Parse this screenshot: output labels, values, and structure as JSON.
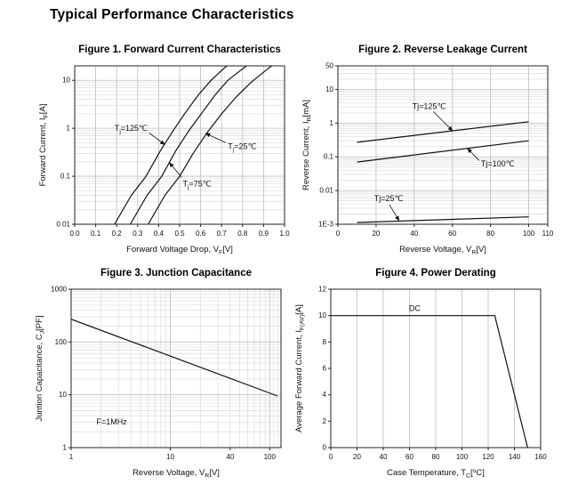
{
  "page": {
    "title": "Typical Performance Characteristics",
    "background": "#ffffff",
    "text_color": "#111111",
    "frame_color": "#222222",
    "curve_color": "#111111",
    "grid_color": "#bdbdbd",
    "minor_grid_color": "#dcdcdc"
  },
  "chart_data": [
    {
      "type": "line",
      "title": "Figure 1. Forward Current Characteristics",
      "x": {
        "scale": "linear",
        "min": 0,
        "max": 1.0,
        "ticks": [
          0,
          0.1,
          0.2,
          0.3,
          0.4,
          0.5,
          0.6,
          0.7,
          0.8,
          0.9,
          1.0
        ],
        "tick_labels": [
          "0.0",
          "0.1",
          "0.2",
          "0.3",
          "0.4",
          "0.5",
          "0.6",
          "0.7",
          "0.8",
          "0.9",
          "1.0"
        ],
        "grid_ticks": [
          0.1,
          0.2,
          0.3,
          0.4,
          0.5,
          0.6,
          0.7,
          0.8,
          0.9
        ],
        "minor_grid": [],
        "label_parts": [
          {
            "t": "Forward Voltage Drop, V"
          },
          {
            "t": "F",
            "sub": true
          },
          {
            "t": "[V]"
          }
        ]
      },
      "y": {
        "scale": "log",
        "min": 0.01,
        "max": 20,
        "ticks": [
          0.01,
          0.1,
          1,
          10
        ],
        "tick_labels": [
          "0.01",
          "0.1",
          "1",
          "10"
        ],
        "grid_ticks": [
          0.1,
          1,
          10
        ],
        "minor_grid": [
          0.02,
          0.03,
          0.04,
          0.05,
          0.06,
          0.07,
          0.08,
          0.09,
          0.2,
          0.3,
          0.4,
          0.5,
          0.6,
          0.7,
          0.8,
          0.9,
          2,
          3,
          4,
          5,
          6,
          7,
          8,
          9
        ],
        "label_parts": [
          {
            "t": "Forward Current, I"
          },
          {
            "t": "F",
            "sub": true
          },
          {
            "t": "[A]"
          }
        ]
      },
      "series": [
        {
          "key": "tj-125c",
          "name": "Tj=125℃",
          "points": [
            [
              0.19,
              0.01
            ],
            [
              0.27,
              0.04
            ],
            [
              0.34,
              0.1
            ],
            [
              0.41,
              0.35
            ],
            [
              0.47,
              0.9
            ],
            [
              0.53,
              2.2
            ],
            [
              0.59,
              5
            ],
            [
              0.65,
              10
            ],
            [
              0.7,
              16
            ],
            [
              0.73,
              21
            ]
          ]
        },
        {
          "key": "tj-75c",
          "name": "Tj=75℃",
          "points": [
            [
              0.265,
              0.01
            ],
            [
              0.345,
              0.04
            ],
            [
              0.415,
              0.1
            ],
            [
              0.48,
              0.33
            ],
            [
              0.545,
              0.9
            ],
            [
              0.61,
              2.2
            ],
            [
              0.67,
              5
            ],
            [
              0.73,
              10
            ],
            [
              0.79,
              16
            ],
            [
              0.825,
              21
            ]
          ]
        },
        {
          "key": "tj-25c",
          "name": "Tj=25℃",
          "points": [
            [
              0.35,
              0.01
            ],
            [
              0.43,
              0.04
            ],
            [
              0.5,
              0.1
            ],
            [
              0.565,
              0.3
            ],
            [
              0.63,
              0.8
            ],
            [
              0.7,
              2.0
            ],
            [
              0.77,
              4.5
            ],
            [
              0.84,
              9
            ],
            [
              0.91,
              16
            ],
            [
              0.945,
              21
            ]
          ]
        }
      ],
      "annotations": [
        {
          "parts": [
            {
              "t": "T"
            },
            {
              "t": "j",
              "sub": true
            },
            {
              "t": "=125℃"
            }
          ],
          "x": 0.19,
          "y": 1.0,
          "anchor": "start",
          "arrow": [
            [
              0.355,
              0.8
            ],
            [
              0.428,
              0.46
            ]
          ]
        },
        {
          "parts": [
            {
              "t": "T"
            },
            {
              "t": "j",
              "sub": true
            },
            {
              "t": "=25℃"
            }
          ],
          "x": 0.73,
          "y": 0.42,
          "anchor": "start",
          "arrow": [
            [
              0.72,
              0.5
            ],
            [
              0.625,
              0.78
            ]
          ]
        },
        {
          "parts": [
            {
              "t": "T"
            },
            {
              "t": "j",
              "sub": true
            },
            {
              "t": "=75℃"
            }
          ],
          "x": 0.515,
          "y": 0.07,
          "anchor": "start",
          "arrow": [
            [
              0.51,
              0.095
            ],
            [
              0.452,
              0.19
            ]
          ]
        }
      ]
    },
    {
      "type": "line",
      "title": "Figure 2. Reverse Leakage Current",
      "x": {
        "scale": "linear",
        "min": 0,
        "max": 110,
        "ticks": [
          0,
          20,
          40,
          60,
          80,
          100,
          110
        ],
        "tick_labels": [
          "0",
          "20",
          "40",
          "60",
          "80",
          "100",
          "110"
        ],
        "grid_ticks": [
          20,
          40,
          60,
          80,
          100
        ],
        "minor_grid": [],
        "label_parts": [
          {
            "t": "Reverse Voltage, V"
          },
          {
            "t": "R",
            "sub": true
          },
          {
            "t": "[V]"
          }
        ]
      },
      "y": {
        "scale": "log",
        "min": 0.001,
        "max": 50,
        "ticks": [
          0.001,
          0.01,
          0.1,
          1,
          10,
          50
        ],
        "tick_labels": [
          "1E-3",
          "0.01",
          "0.1",
          "1",
          "10",
          "50"
        ],
        "grid_ticks": [
          0.01,
          0.1,
          1,
          10
        ],
        "minor_grid": [
          0.002,
          0.003,
          0.004,
          0.005,
          0.006,
          0.007,
          0.008,
          0.009,
          0.02,
          0.03,
          0.04,
          0.05,
          0.06,
          0.07,
          0.08,
          0.09,
          0.2,
          0.3,
          0.4,
          0.5,
          0.6,
          0.7,
          0.8,
          0.9,
          2,
          3,
          4,
          5,
          6,
          7,
          8,
          9,
          20,
          30,
          40
        ],
        "label_parts": [
          {
            "t": "Reverse Current, I"
          },
          {
            "t": "R",
            "sub": true
          },
          {
            "t": "[mA]"
          }
        ]
      },
      "series": [
        {
          "key": "tj-125c",
          "name": "Tj=125℃",
          "points": [
            [
              10,
              0.27
            ],
            [
              100,
              1.1
            ]
          ]
        },
        {
          "key": "tj-100c",
          "name": "Tj=100℃",
          "points": [
            [
              10,
              0.07
            ],
            [
              100,
              0.3
            ]
          ]
        },
        {
          "key": "tj-25c",
          "name": "Tj=25℃",
          "points": [
            [
              10,
              0.00113
            ],
            [
              100,
              0.00166
            ]
          ]
        }
      ],
      "annotations": [
        {
          "parts": [
            {
              "t": "Tj=125℃"
            }
          ],
          "x": 39,
          "y": 3.1,
          "anchor": "start",
          "arrow": [
            [
              50,
              2.2
            ],
            [
              60,
              0.6
            ]
          ]
        },
        {
          "parts": [
            {
              "t": "Tj=100℃"
            }
          ],
          "x": 75,
          "y": 0.062,
          "anchor": "start",
          "arrow": [
            [
              74,
              0.078
            ],
            [
              68,
              0.175
            ]
          ]
        },
        {
          "parts": [
            {
              "t": "Tj=25℃"
            }
          ],
          "x": 19,
          "y": 0.0058,
          "anchor": "start",
          "arrow": [
            [
              27,
              0.0038
            ],
            [
              32,
              0.0013
            ]
          ]
        }
      ]
    },
    {
      "type": "line",
      "title": "Figure 3. Junction Capacitance",
      "x": {
        "scale": "log",
        "min": 1,
        "max": 130,
        "ticks": [
          1,
          10,
          40,
          100
        ],
        "tick_labels": [
          "1",
          "10",
          "40",
          "100"
        ],
        "grid_ticks": [
          10,
          100
        ],
        "minor_grid": [
          2,
          3,
          4,
          5,
          6,
          7,
          8,
          9,
          20,
          30,
          40,
          50,
          60,
          70,
          80,
          90,
          110,
          120
        ],
        "label_parts": [
          {
            "t": "Reverse Voltage, V"
          },
          {
            "t": "R",
            "sub": true
          },
          {
            "t": "[V]"
          }
        ]
      },
      "y": {
        "scale": "log",
        "min": 1,
        "max": 1000,
        "ticks": [
          1,
          10,
          100,
          1000
        ],
        "tick_labels": [
          "1",
          "10",
          "100",
          "1000"
        ],
        "grid_ticks": [
          10,
          100
        ],
        "minor_grid": [
          2,
          3,
          4,
          5,
          6,
          7,
          8,
          9,
          20,
          30,
          40,
          50,
          60,
          70,
          80,
          90,
          200,
          300,
          400,
          500,
          600,
          700,
          800,
          900
        ],
        "label_parts": [
          {
            "t": "Juntion Capacitance, C"
          },
          {
            "t": "J",
            "sub": true
          },
          {
            "t": "[PF]"
          }
        ]
      },
      "series": [
        {
          "key": "cj",
          "name": "Junction capacitance",
          "points": [
            [
              1,
              270
            ],
            [
              120,
              9.5
            ]
          ]
        }
      ],
      "annotations": [
        {
          "parts": [
            {
              "t": "F=1MHz"
            }
          ],
          "x": 1.8,
          "y": 3.1,
          "anchor": "start"
        }
      ]
    },
    {
      "type": "line",
      "title": "Figure 4. Power Derating",
      "x": {
        "scale": "linear",
        "min": 0,
        "max": 160,
        "ticks": [
          0,
          20,
          40,
          60,
          80,
          100,
          120,
          140,
          160
        ],
        "tick_labels": [
          "0",
          "20",
          "40",
          "60",
          "80",
          "100",
          "120",
          "140",
          "160"
        ],
        "grid_ticks": [
          20,
          40,
          60,
          80,
          100,
          120,
          140
        ],
        "minor_grid": [],
        "label_parts": [
          {
            "t": "Case Temperature, T"
          },
          {
            "t": "C",
            "sub": true
          },
          {
            "t": "["
          },
          {
            "t": "o",
            "sup": true
          },
          {
            "t": "C]"
          }
        ]
      },
      "y": {
        "scale": "linear",
        "min": 0,
        "max": 12,
        "ticks": [
          0,
          2,
          4,
          6,
          8,
          10,
          12
        ],
        "tick_labels": [
          "0",
          "2",
          "4",
          "6",
          "8",
          "10",
          "12"
        ],
        "grid_ticks": [],
        "minor_grid": [],
        "label_parts": [
          {
            "t": "Average Forward Current, I"
          },
          {
            "t": "F(AV)",
            "sub": true
          },
          {
            "t": "[A]"
          }
        ]
      },
      "series": [
        {
          "key": "dc",
          "name": "DC",
          "points": [
            [
              0,
              10
            ],
            [
              125,
              10
            ],
            [
              150,
              0
            ]
          ]
        }
      ],
      "annotations": [
        {
          "parts": [
            {
              "t": "DC"
            }
          ],
          "x": 64,
          "y": 10.55,
          "anchor": "middle"
        }
      ]
    }
  ]
}
